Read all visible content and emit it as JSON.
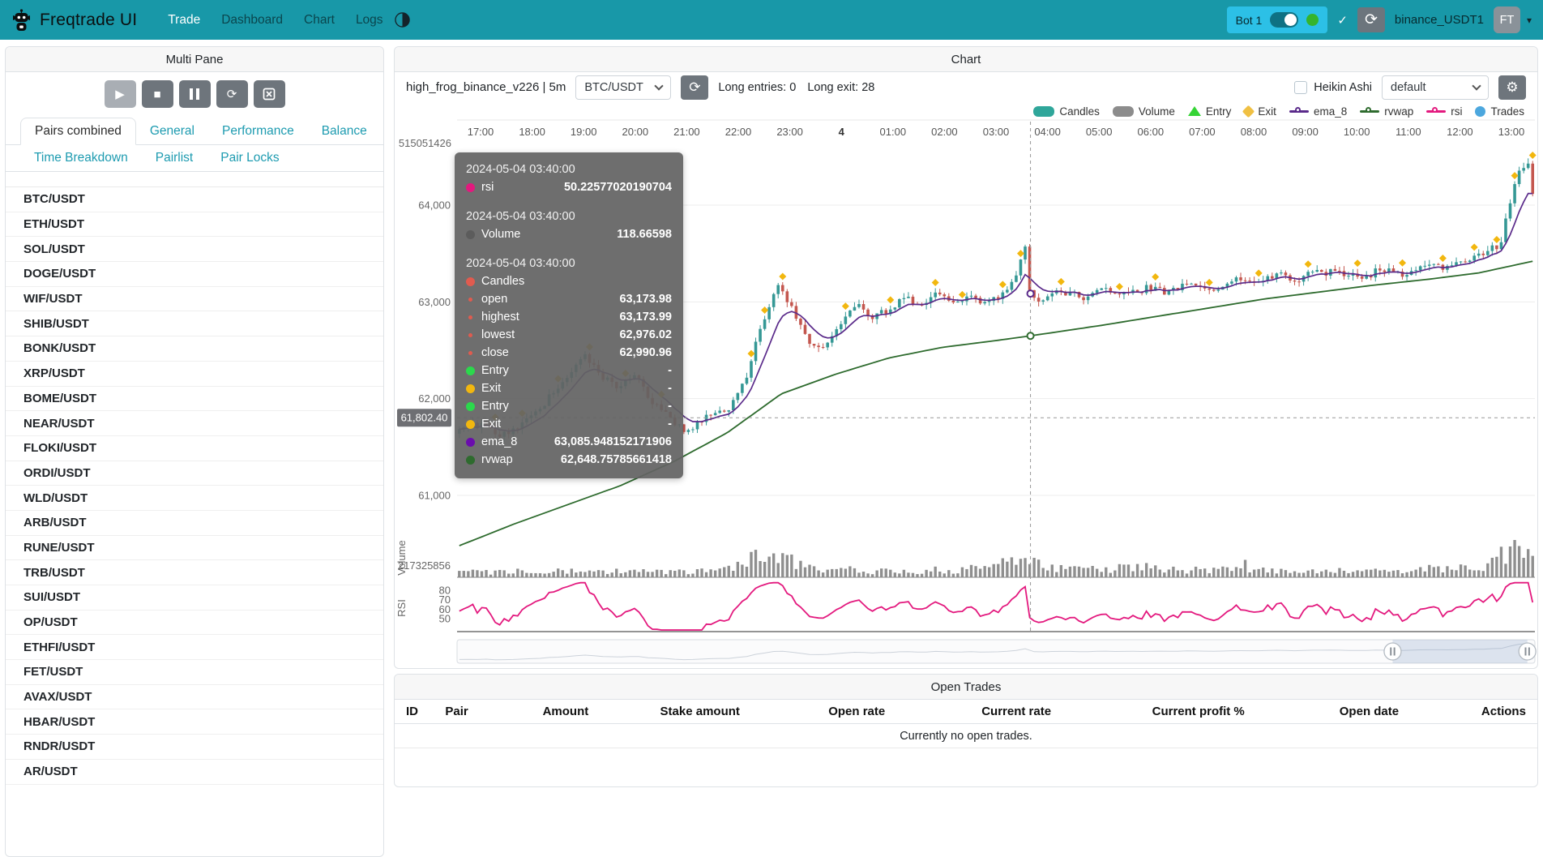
{
  "navbar": {
    "title": "Freqtrade UI",
    "menu": [
      {
        "label": "Trade",
        "active": true
      },
      {
        "label": "Dashboard",
        "active": false
      },
      {
        "label": "Chart",
        "active": false
      },
      {
        "label": "Logs",
        "active": false
      }
    ],
    "bot_label": "Bot 1",
    "check": "✓",
    "reload_icon": "⟳",
    "exchange": "binance_USDT1",
    "avatar": "FT",
    "caret": "▾",
    "colors": {
      "navbar": "#1898A8",
      "bot_box": "#2CC0E6",
      "online": "#35B42D"
    }
  },
  "multi_pane": {
    "title": "Multi Pane",
    "controls": [
      {
        "name": "play",
        "icon": "▶",
        "disabled": true
      },
      {
        "name": "stop",
        "icon": "■",
        "disabled": false
      },
      {
        "name": "pause",
        "icon": "pause-bars",
        "disabled": false
      },
      {
        "name": "reload",
        "icon": "⟳",
        "disabled": false
      },
      {
        "name": "clear-chart",
        "icon": "chart-x",
        "disabled": false
      }
    ],
    "tabs_row1": [
      {
        "label": "Pairs combined",
        "active": true
      },
      {
        "label": "General",
        "active": false
      },
      {
        "label": "Performance",
        "active": false
      },
      {
        "label": "Balance",
        "active": false
      }
    ],
    "tabs_row2": [
      {
        "label": "Time Breakdown",
        "active": false
      },
      {
        "label": "Pairlist",
        "active": false
      },
      {
        "label": "Pair Locks",
        "active": false
      }
    ],
    "pairs": [
      "BTC/USDT",
      "ETH/USDT",
      "SOL/USDT",
      "DOGE/USDT",
      "WIF/USDT",
      "SHIB/USDT",
      "BONK/USDT",
      "XRP/USDT",
      "BOME/USDT",
      "NEAR/USDT",
      "FLOKI/USDT",
      "ORDI/USDT",
      "WLD/USDT",
      "ARB/USDT",
      "RUNE/USDT",
      "TRB/USDT",
      "SUI/USDT",
      "OP/USDT",
      "ETHFI/USDT",
      "FET/USDT",
      "AVAX/USDT",
      "HBAR/USDT",
      "RNDR/USDT",
      "AR/USDT"
    ]
  },
  "chart_header": {
    "title": "Chart",
    "strategy": "high_frog_binance_v226 | 5m",
    "pair": "BTC/USDT",
    "long_entries": "Long entries: 0",
    "long_exit": "Long exit: 28",
    "heikin_ashi": "Heikin Ashi",
    "plot_config": "default",
    "gear_icon": "⚙"
  },
  "legend": [
    {
      "label": "Candles",
      "shape": "pill",
      "color": "#2FA69A"
    },
    {
      "label": "Volume",
      "shape": "pill",
      "color": "#8C8C8C"
    },
    {
      "label": "Entry",
      "shape": "triangle",
      "color": "#35D435"
    },
    {
      "label": "Exit",
      "shape": "diamond",
      "color": "#F0C043"
    },
    {
      "label": "ema_8",
      "shape": "line",
      "color": "#5A2A8A"
    },
    {
      "label": "rvwap",
      "shape": "line",
      "color": "#2E6B2E"
    },
    {
      "label": "rsi",
      "shape": "line",
      "color": "#E3197E"
    },
    {
      "label": "Trades",
      "shape": "circle",
      "color": "#4CA7DE"
    }
  ],
  "axes": {
    "time": [
      "17:00",
      "18:00",
      "19:00",
      "20:00",
      "21:00",
      "22:00",
      "23:00",
      "4",
      "01:00",
      "02:00",
      "03:00",
      "04:00",
      "05:00",
      "06:00",
      "07:00",
      "08:00",
      "09:00",
      "10:00",
      "11:00",
      "12:00",
      "13:00"
    ],
    "day_label_index": 7,
    "price": [
      {
        "label": "64,000",
        "value": 64000
      },
      {
        "label": "63,000",
        "value": 63000
      },
      {
        "label": "62,000",
        "value": 62000
      },
      {
        "label": "61,000",
        "value": 61000
      }
    ],
    "top_label": "515051426",
    "volume_label": "217325856",
    "volume_axis_name": "Volume",
    "rsi_ticks": [
      "80",
      "70",
      "60",
      "50"
    ],
    "rsi_axis_name": "RSI",
    "pointer_price": "61,802.40"
  },
  "tooltip": {
    "sections": [
      {
        "date": "2024-05-04 03:40:00",
        "rows": [
          {
            "dot": "#E3197E",
            "small": false,
            "label": "rsi",
            "value": "50.22577020190704"
          }
        ]
      },
      {
        "date": "2024-05-04 03:40:00",
        "rows": [
          {
            "dot": "#5c5c5c",
            "small": false,
            "label": "Volume",
            "value": "118.66598"
          }
        ]
      },
      {
        "date": "2024-05-04 03:40:00",
        "rows": [
          {
            "dot": "#E05B4F",
            "small": false,
            "label": "Candles",
            "value": ""
          },
          {
            "dot": "#E05B4F",
            "small": true,
            "label": "open",
            "value": "63,173.98"
          },
          {
            "dot": "#E05B4F",
            "small": true,
            "label": "highest",
            "value": "63,173.99"
          },
          {
            "dot": "#E05B4F",
            "small": true,
            "label": "lowest",
            "value": "62,976.02"
          },
          {
            "dot": "#E05B4F",
            "small": true,
            "label": "close",
            "value": "62,990.96"
          },
          {
            "dot": "#2BD94C",
            "small": false,
            "label": "Entry",
            "value": "-"
          },
          {
            "dot": "#F2B70F",
            "small": false,
            "label": "Exit",
            "value": "-"
          },
          {
            "dot": "#2BD94C",
            "small": false,
            "label": "Entry",
            "value": "-"
          },
          {
            "dot": "#F2B70F",
            "small": false,
            "label": "Exit",
            "value": "-"
          },
          {
            "dot": "#6A0DAD",
            "small": false,
            "label": "ema_8",
            "value": "63,085.948152171906"
          },
          {
            "dot": "#2E6B2E",
            "small": false,
            "label": "rvwap",
            "value": "62,648.75785661418"
          }
        ]
      }
    ]
  },
  "open_trades": {
    "title": "Open Trades",
    "columns": [
      "ID",
      "Pair",
      "Amount",
      "Stake amount",
      "Open rate",
      "Current rate",
      "Current profit %",
      "Open date",
      "Actions"
    ],
    "empty": "Currently no open trades."
  },
  "chart_data": {
    "type": "candlestick",
    "pair": "BTC/USDT",
    "timeframe": "5m",
    "candle_count": 240,
    "price_anchors": [
      [
        0,
        61650
      ],
      [
        0.02,
        61750
      ],
      [
        0.045,
        61600
      ],
      [
        0.07,
        61850
      ],
      [
        0.095,
        62150
      ],
      [
        0.115,
        62450
      ],
      [
        0.13,
        62250
      ],
      [
        0.15,
        62100
      ],
      [
        0.165,
        62250
      ],
      [
        0.18,
        61950
      ],
      [
        0.2,
        61750
      ],
      [
        0.215,
        61650
      ],
      [
        0.23,
        61850
      ],
      [
        0.25,
        61900
      ],
      [
        0.265,
        62150
      ],
      [
        0.28,
        62700
      ],
      [
        0.297,
        63180
      ],
      [
        0.31,
        62950
      ],
      [
        0.325,
        62600
      ],
      [
        0.34,
        62520
      ],
      [
        0.355,
        62750
      ],
      [
        0.37,
        63000
      ],
      [
        0.385,
        62850
      ],
      [
        0.4,
        62900
      ],
      [
        0.415,
        63060
      ],
      [
        0.43,
        62950
      ],
      [
        0.445,
        63080
      ],
      [
        0.46,
        62980
      ],
      [
        0.475,
        63040
      ],
      [
        0.49,
        62960
      ],
      [
        0.505,
        63080
      ],
      [
        0.52,
        63280
      ],
      [
        0.527,
        63580
      ],
      [
        0.533,
        62990
      ],
      [
        0.545,
        63060
      ],
      [
        0.56,
        63120
      ],
      [
        0.58,
        63040
      ],
      [
        0.6,
        63120
      ],
      [
        0.62,
        63060
      ],
      [
        0.64,
        63140
      ],
      [
        0.66,
        63090
      ],
      [
        0.68,
        63180
      ],
      [
        0.7,
        63130
      ],
      [
        0.72,
        63230
      ],
      [
        0.74,
        63180
      ],
      [
        0.76,
        63280
      ],
      [
        0.78,
        63230
      ],
      [
        0.8,
        63330
      ],
      [
        0.82,
        63280
      ],
      [
        0.84,
        63240
      ],
      [
        0.86,
        63340
      ],
      [
        0.88,
        63290
      ],
      [
        0.9,
        63390
      ],
      [
        0.92,
        63340
      ],
      [
        0.94,
        63440
      ],
      [
        0.955,
        63500
      ],
      [
        0.97,
        63600
      ],
      [
        0.985,
        64300
      ],
      [
        0.995,
        64450
      ],
      [
        1,
        64150
      ]
    ],
    "rvwap_anchors": [
      [
        0,
        60480
      ],
      [
        0.05,
        60700
      ],
      [
        0.1,
        60900
      ],
      [
        0.15,
        61100
      ],
      [
        0.2,
        61350
      ],
      [
        0.25,
        61650
      ],
      [
        0.3,
        62050
      ],
      [
        0.35,
        62250
      ],
      [
        0.4,
        62420
      ],
      [
        0.45,
        62530
      ],
      [
        0.5,
        62600
      ],
      [
        0.532,
        62648.76
      ],
      [
        0.6,
        62760
      ],
      [
        0.65,
        62850
      ],
      [
        0.7,
        62940
      ],
      [
        0.75,
        63030
      ],
      [
        0.8,
        63100
      ],
      [
        0.85,
        63170
      ],
      [
        0.9,
        63230
      ],
      [
        0.95,
        63300
      ],
      [
        1,
        63420
      ]
    ],
    "volume_anchors": [
      [
        0,
        45
      ],
      [
        0.1,
        55
      ],
      [
        0.2,
        40
      ],
      [
        0.25,
        60
      ],
      [
        0.27,
        150
      ],
      [
        0.297,
        200
      ],
      [
        0.315,
        90
      ],
      [
        0.35,
        60
      ],
      [
        0.4,
        55
      ],
      [
        0.45,
        60
      ],
      [
        0.5,
        75
      ],
      [
        0.52,
        160
      ],
      [
        0.527,
        230
      ],
      [
        0.54,
        120
      ],
      [
        0.56,
        70
      ],
      [
        0.6,
        60
      ],
      [
        0.63,
        85
      ],
      [
        0.66,
        60
      ],
      [
        0.7,
        55
      ],
      [
        0.73,
        95
      ],
      [
        0.76,
        65
      ],
      [
        0.8,
        55
      ],
      [
        0.84,
        60
      ],
      [
        0.88,
        55
      ],
      [
        0.9,
        65
      ],
      [
        0.93,
        70
      ],
      [
        0.955,
        90
      ],
      [
        0.97,
        160
      ],
      [
        0.985,
        290
      ],
      [
        1,
        260
      ]
    ],
    "exit_marker_ts": [
      0.035,
      0.06,
      0.09,
      0.12,
      0.155,
      0.19,
      0.27,
      0.285,
      0.3,
      0.36,
      0.4,
      0.445,
      0.47,
      0.505,
      0.525,
      0.56,
      0.615,
      0.65,
      0.7,
      0.745,
      0.79,
      0.835,
      0.88,
      0.915,
      0.945,
      0.965,
      0.985,
      1.0
    ],
    "crosshair": {
      "x_frac": 0.532,
      "price": 61802.4
    },
    "datazoom": {
      "sel_start_frac": 0.868,
      "sel_end_frac": 0.993
    },
    "colors": {
      "up": "#359895",
      "down": "#C4574F",
      "ema": "#5A2A8A",
      "rvwap": "#2E6B2E",
      "rsi": "#E3197E",
      "volume": "#8F8F8F",
      "exit": "#F2B70F",
      "grid": "#ededed"
    }
  }
}
